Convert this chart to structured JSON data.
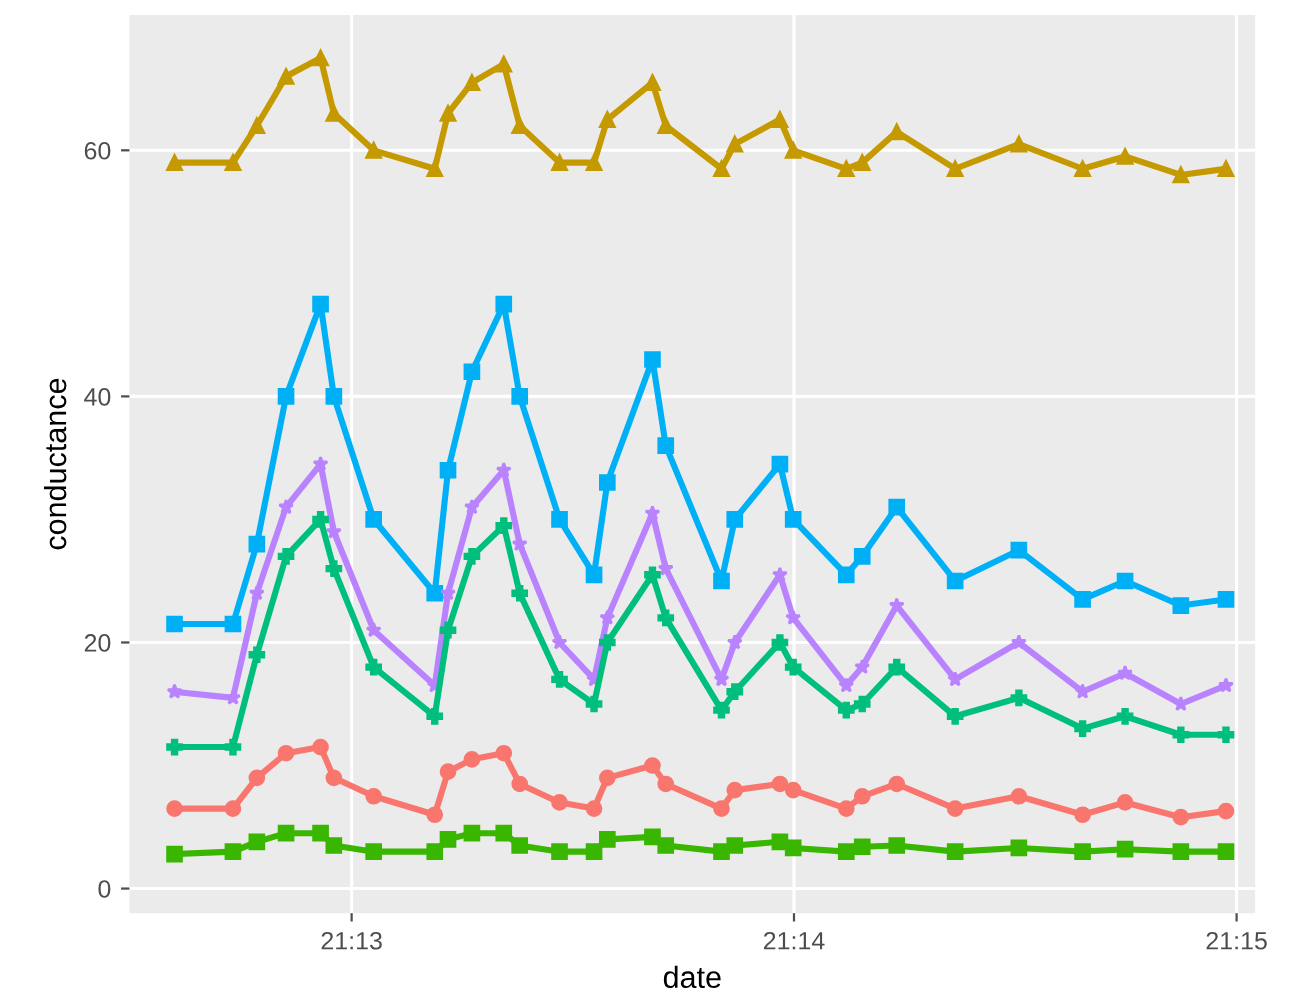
{
  "chart_data": {
    "type": "line",
    "xlabel": "date",
    "ylabel": "conductance",
    "x": [
      21.21,
      21.2122,
      21.2131,
      21.2142,
      21.2155,
      21.216,
      21.2175,
      21.2198,
      21.2203,
      21.2212,
      21.2224,
      21.223,
      21.2245,
      21.2258,
      21.2263,
      21.228,
      21.2285,
      21.2306,
      21.2311,
      21.2328,
      21.2333,
      21.2353,
      21.2359,
      21.2372,
      21.2394,
      21.2418,
      21.2442,
      21.2458,
      21.2479,
      21.2496
    ],
    "xlim": [
      21.2083,
      21.2507
    ],
    "ylim": [
      -2,
      71
    ],
    "xticks": [
      {
        "value": 21.21667,
        "label": "21:13"
      },
      {
        "value": 21.23333,
        "label": "21:14"
      },
      {
        "value": 21.25,
        "label": "21:15"
      }
    ],
    "yticks": [
      0,
      20,
      40,
      60
    ],
    "grid": true,
    "series": [
      {
        "color": "#c49a00",
        "marker": "triangle",
        "values": [
          59,
          59,
          62,
          66,
          67.5,
          63,
          60,
          58.5,
          63,
          65.5,
          67,
          62,
          59,
          59,
          62.5,
          65.5,
          62,
          58.5,
          60.5,
          62.5,
          60,
          58.5,
          59,
          61.5,
          58.5,
          60.5,
          58.5,
          59.5,
          58,
          58.5
        ]
      },
      {
        "color": "#00b0f6",
        "marker": "square",
        "values": [
          21.5,
          21.5,
          28,
          40,
          47.5,
          40,
          30,
          24,
          34,
          42,
          47.5,
          40,
          30,
          25.5,
          33,
          43,
          36,
          25,
          30,
          34.5,
          30,
          25.5,
          27,
          31,
          25,
          27.5,
          23.5,
          25,
          23,
          23.5
        ]
      },
      {
        "color": "#b983ff",
        "marker": "star",
        "values": [
          16,
          15.5,
          24,
          31,
          34.5,
          29,
          21,
          16.5,
          24,
          31,
          34,
          28,
          20,
          17,
          22,
          30.5,
          26,
          17,
          20,
          25.5,
          22,
          16.5,
          18,
          23,
          17,
          20,
          16,
          17.5,
          15,
          16.5
        ]
      },
      {
        "color": "#00bf7d",
        "marker": "cross",
        "values": [
          11.5,
          11.5,
          19,
          27,
          30,
          26,
          18,
          14,
          21,
          27,
          29.5,
          24,
          17,
          15,
          20,
          25.5,
          22,
          14.5,
          16,
          20,
          18,
          14.5,
          15,
          18,
          14,
          15.5,
          13,
          14,
          12.5,
          12.5
        ]
      },
      {
        "color": "#f8766d",
        "marker": "circle",
        "values": [
          6.5,
          6.5,
          9,
          11,
          11.5,
          9,
          7.5,
          6,
          9.5,
          10.5,
          11,
          8.5,
          7,
          6.5,
          9,
          10,
          8.5,
          6.5,
          8,
          8.5,
          8,
          6.5,
          7.5,
          8.5,
          6.5,
          7.5,
          6,
          7,
          5.8,
          6.3
        ]
      },
      {
        "color": "#39b600",
        "marker": "square",
        "values": [
          2.8,
          3,
          3.8,
          4.5,
          4.5,
          3.5,
          3,
          3,
          4,
          4.5,
          4.5,
          3.5,
          3,
          3,
          4,
          4.2,
          3.5,
          3,
          3.5,
          3.8,
          3.3,
          3,
          3.4,
          3.5,
          3,
          3.3,
          3,
          3.2,
          3,
          3
        ]
      }
    ]
  }
}
